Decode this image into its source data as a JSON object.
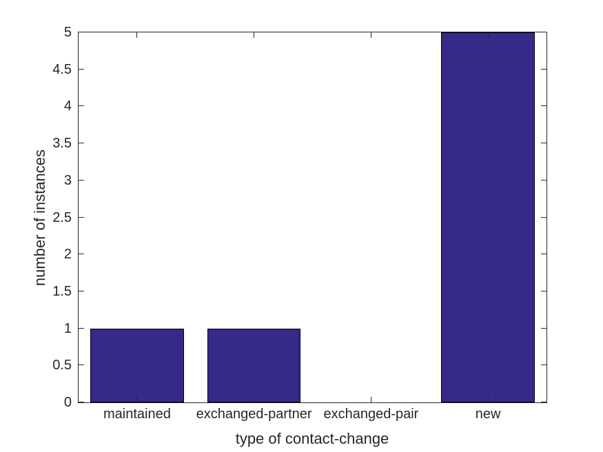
{
  "figure": {
    "background_color": "#ffffff",
    "axis_color": "#262626",
    "text_color": "#262626"
  },
  "chart_data": {
    "type": "bar",
    "categories": [
      "maintained",
      "exchanged-partner",
      "exchanged-pair",
      "new"
    ],
    "values": [
      1,
      1,
      0,
      5
    ],
    "xlabel": "type of contact-change",
    "ylabel": "number of instances",
    "ylim": [
      0,
      5
    ],
    "yticks": [
      0,
      0.5,
      1,
      1.5,
      2,
      2.5,
      3,
      3.5,
      4,
      4.5,
      5
    ],
    "ytick_labels": [
      "0",
      "0.5",
      "1",
      "1.5",
      "2",
      "2.5",
      "3",
      "3.5",
      "4",
      "4.5",
      "5"
    ],
    "bar_color": "#352A87",
    "bar_edge_color": "#000000",
    "bar_width_fraction": 0.8,
    "grid": false,
    "legend": null,
    "tick_direction": "in",
    "box": "on"
  }
}
